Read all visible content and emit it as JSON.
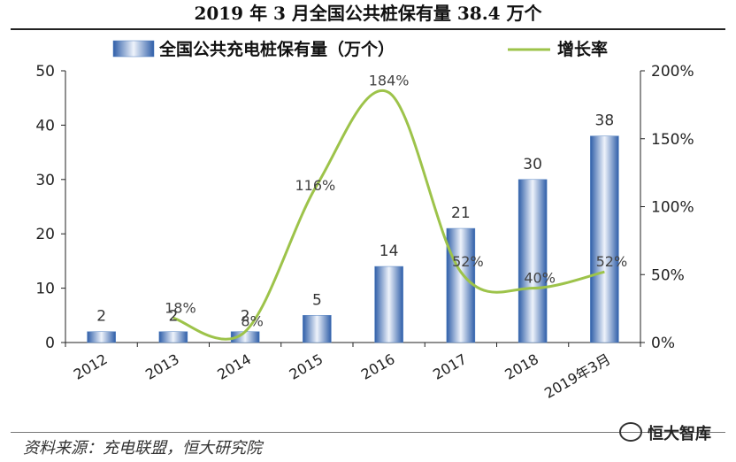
{
  "title": "2019 年 3 月全国公共桩保有量 38.4 万个",
  "source": "资料来源：充电联盟，恒大研究院",
  "watermark": "恒大智库",
  "colors": {
    "bar": "#4f7fc0",
    "line": "#9dc34a",
    "axis": "#222222",
    "text": "#222222"
  },
  "chart_data": {
    "type": "bar",
    "categories": [
      "2012",
      "2013",
      "2014",
      "2015",
      "2016",
      "2017",
      "2018",
      "2019年3月"
    ],
    "series": [
      {
        "name": "全国公共充电桩保有量（万个）",
        "type": "bar",
        "axis": "left",
        "values": [
          2,
          2,
          2,
          5,
          14,
          21,
          30,
          38
        ],
        "labels": [
          "2",
          "2",
          "2",
          "5",
          "14",
          "21",
          "30",
          "38"
        ]
      },
      {
        "name": "增长率",
        "type": "line",
        "axis": "right",
        "smooth": true,
        "values": [
          null,
          18,
          8,
          116,
          184,
          52,
          40,
          52
        ],
        "labels": [
          "",
          "18%",
          "8%",
          "116%",
          "184%",
          "52%",
          "40%",
          "52%"
        ]
      }
    ],
    "left_axis": {
      "min": 0,
      "max": 50,
      "ticks": [
        "0",
        "10",
        "20",
        "30",
        "40",
        "50"
      ]
    },
    "right_axis": {
      "min": 0,
      "max": 200,
      "ticks": [
        "0%",
        "50%",
        "100%",
        "150%",
        "200%"
      ]
    },
    "legend_position": "top"
  }
}
